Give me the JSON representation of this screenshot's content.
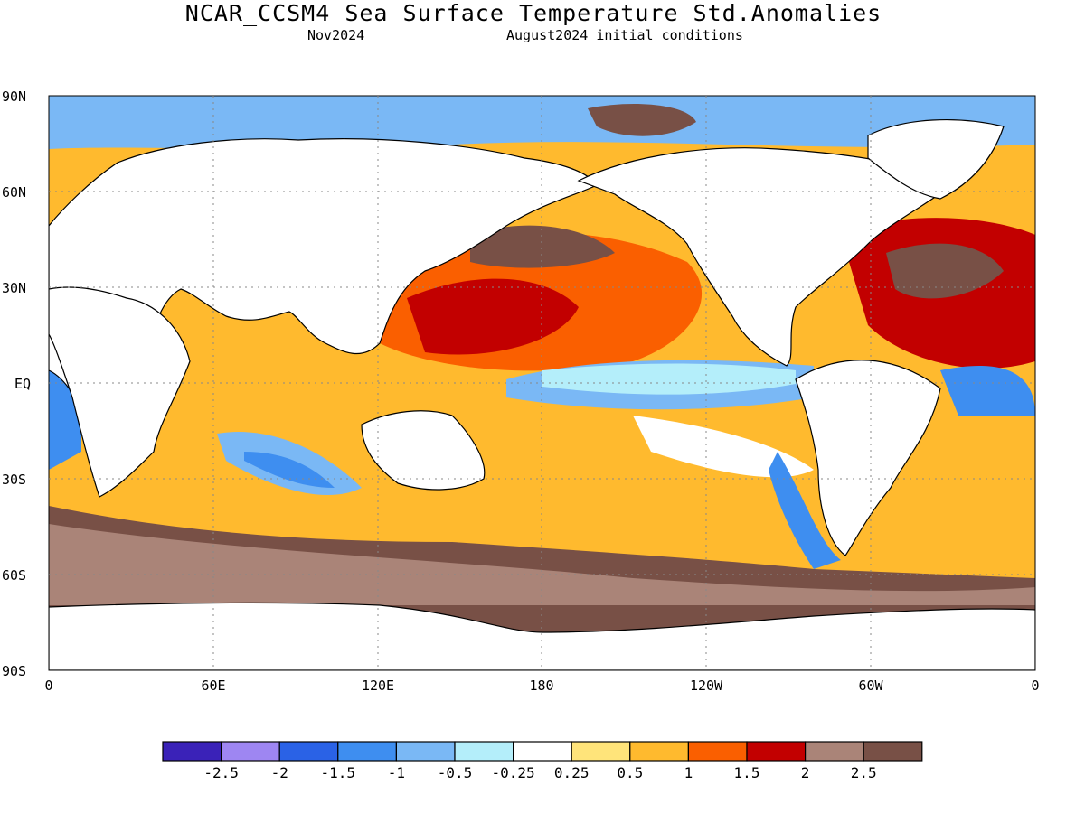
{
  "title": "NCAR_CCSM4 Sea Surface Temperature Std.Anomalies",
  "subtitle_left": "Nov2024",
  "subtitle_right": "August2024 initial conditions",
  "map": {
    "projection": "cylindrical-equidistant",
    "lon_range": [
      0,
      360
    ],
    "lat_range": [
      -90,
      90
    ],
    "gridlines": "dotted",
    "y_ticks": [
      "90N",
      "60N",
      "30N",
      "EQ",
      "30S",
      "60S",
      "90S"
    ],
    "x_ticks": [
      "0",
      "60E",
      "120E",
      "180",
      "120W",
      "60W",
      "0"
    ],
    "land_color": "#ffffff",
    "coastline_color": "#000000"
  },
  "colorbar": {
    "bins": [
      {
        "color": "#3a22b8"
      },
      {
        "color": "#9e86f2"
      },
      {
        "color": "#2a62e6"
      },
      {
        "color": "#3e8ef0"
      },
      {
        "color": "#7ab8f5"
      },
      {
        "color": "#b4eefa"
      },
      {
        "color": "#ffffff"
      },
      {
        "color": "#ffe47a"
      },
      {
        "color": "#ffba2e"
      },
      {
        "color": "#fa5f00"
      },
      {
        "color": "#c20000"
      },
      {
        "color": "#aa8478"
      },
      {
        "color": "#785046"
      }
    ],
    "labels": [
      "-2.5",
      "-2",
      "-1.5",
      "-1",
      "-0.5",
      "-0.25",
      "0.25",
      "0.5",
      "1",
      "1.5",
      "2",
      "2.5"
    ]
  }
}
